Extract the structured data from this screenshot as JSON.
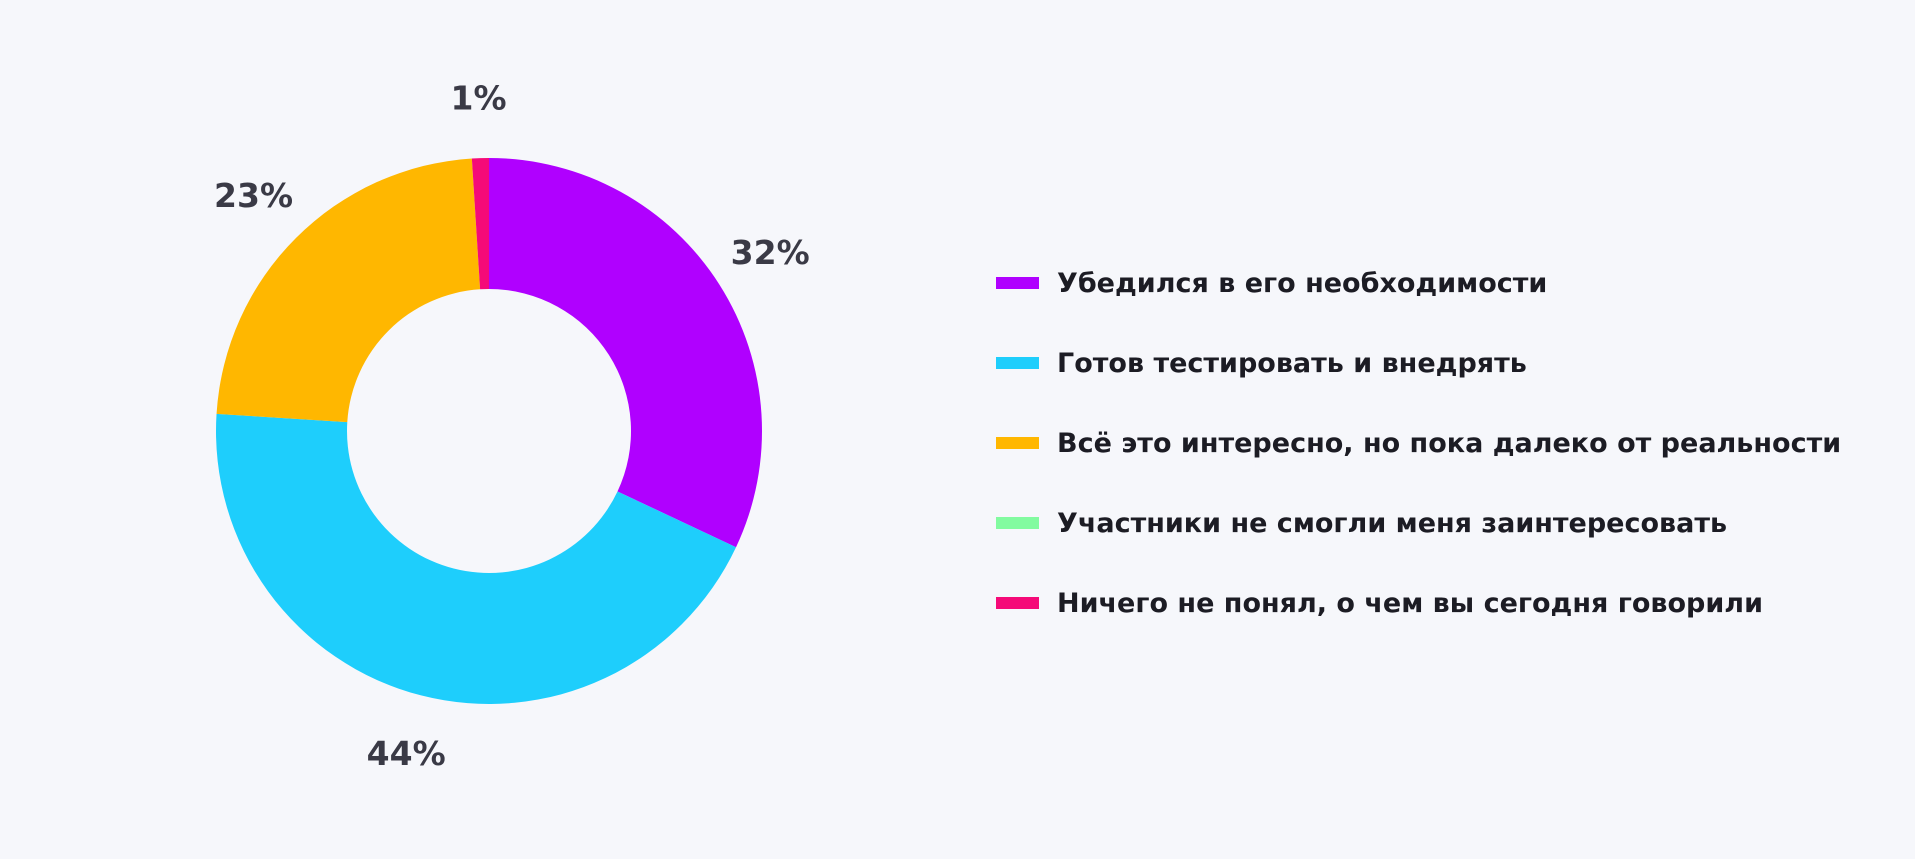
{
  "chart_data": {
    "type": "pie",
    "donut": true,
    "start": "top",
    "direction": "clockwise",
    "legend_position": "right",
    "series": [
      {
        "name": "Убедился в его необходимости",
        "value": 32,
        "label": "32%",
        "color": "#b000ff"
      },
      {
        "name": "Готов тестировать и внедрять",
        "value": 44,
        "label": "44%",
        "color": "#1ecefc"
      },
      {
        "name": "Всё это интересно, но пока далеко от реальности",
        "value": 23,
        "label": "23%",
        "color": "#ffb700"
      },
      {
        "name": "Участники не смогли меня заинтересовать",
        "value": 0,
        "label": "",
        "color": "#82fba0"
      },
      {
        "name": "Ничего не понял, о чем вы сегодня говорили",
        "value": 1,
        "label": "1%",
        "color": "#f50a78"
      }
    ]
  }
}
